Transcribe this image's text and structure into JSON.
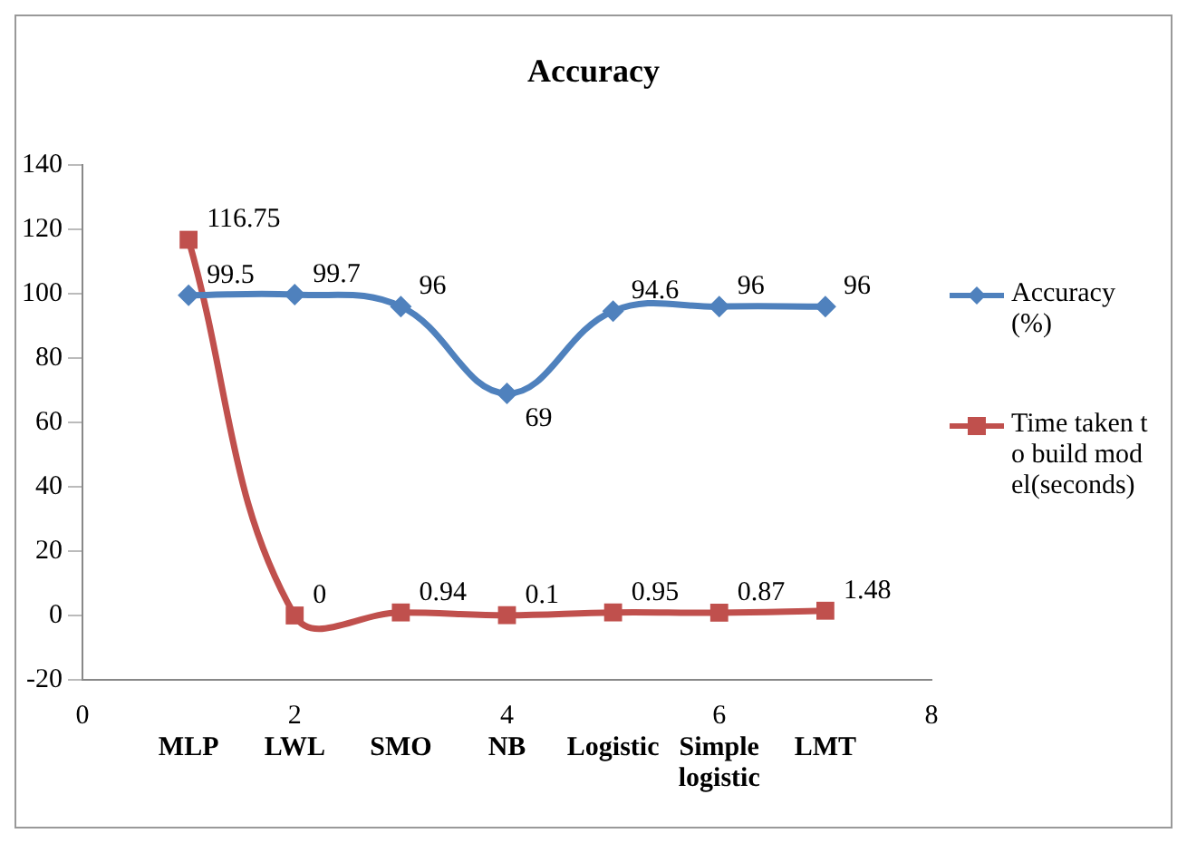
{
  "chart_data": {
    "type": "line",
    "title": "Accuracy",
    "x": [
      1,
      2,
      3,
      4,
      5,
      6,
      7
    ],
    "annotations": [
      "MLP",
      "LWL",
      "SMO",
      "NB",
      "Logistic",
      "Simple logistic",
      "LMT"
    ],
    "series": [
      {
        "name": "Accuracy(%)",
        "color": "#4f81bd",
        "marker": "diamond",
        "values": [
          99.5,
          99.7,
          96,
          69,
          94.6,
          96,
          96
        ]
      },
      {
        "name": "Time taken to build model(seconds)",
        "color": "#c0504d",
        "marker": "square",
        "values": [
          116.75,
          0,
          0.94,
          0.1,
          0.95,
          0.87,
          1.48
        ]
      }
    ],
    "xlim": [
      0,
      8
    ],
    "xticks": [
      0,
      2,
      4,
      6,
      8
    ],
    "ylim": [
      -20,
      140
    ],
    "yticks": [
      -20,
      0,
      20,
      40,
      60,
      80,
      100,
      120,
      140
    ],
    "data_labels": true,
    "legend": "right"
  }
}
